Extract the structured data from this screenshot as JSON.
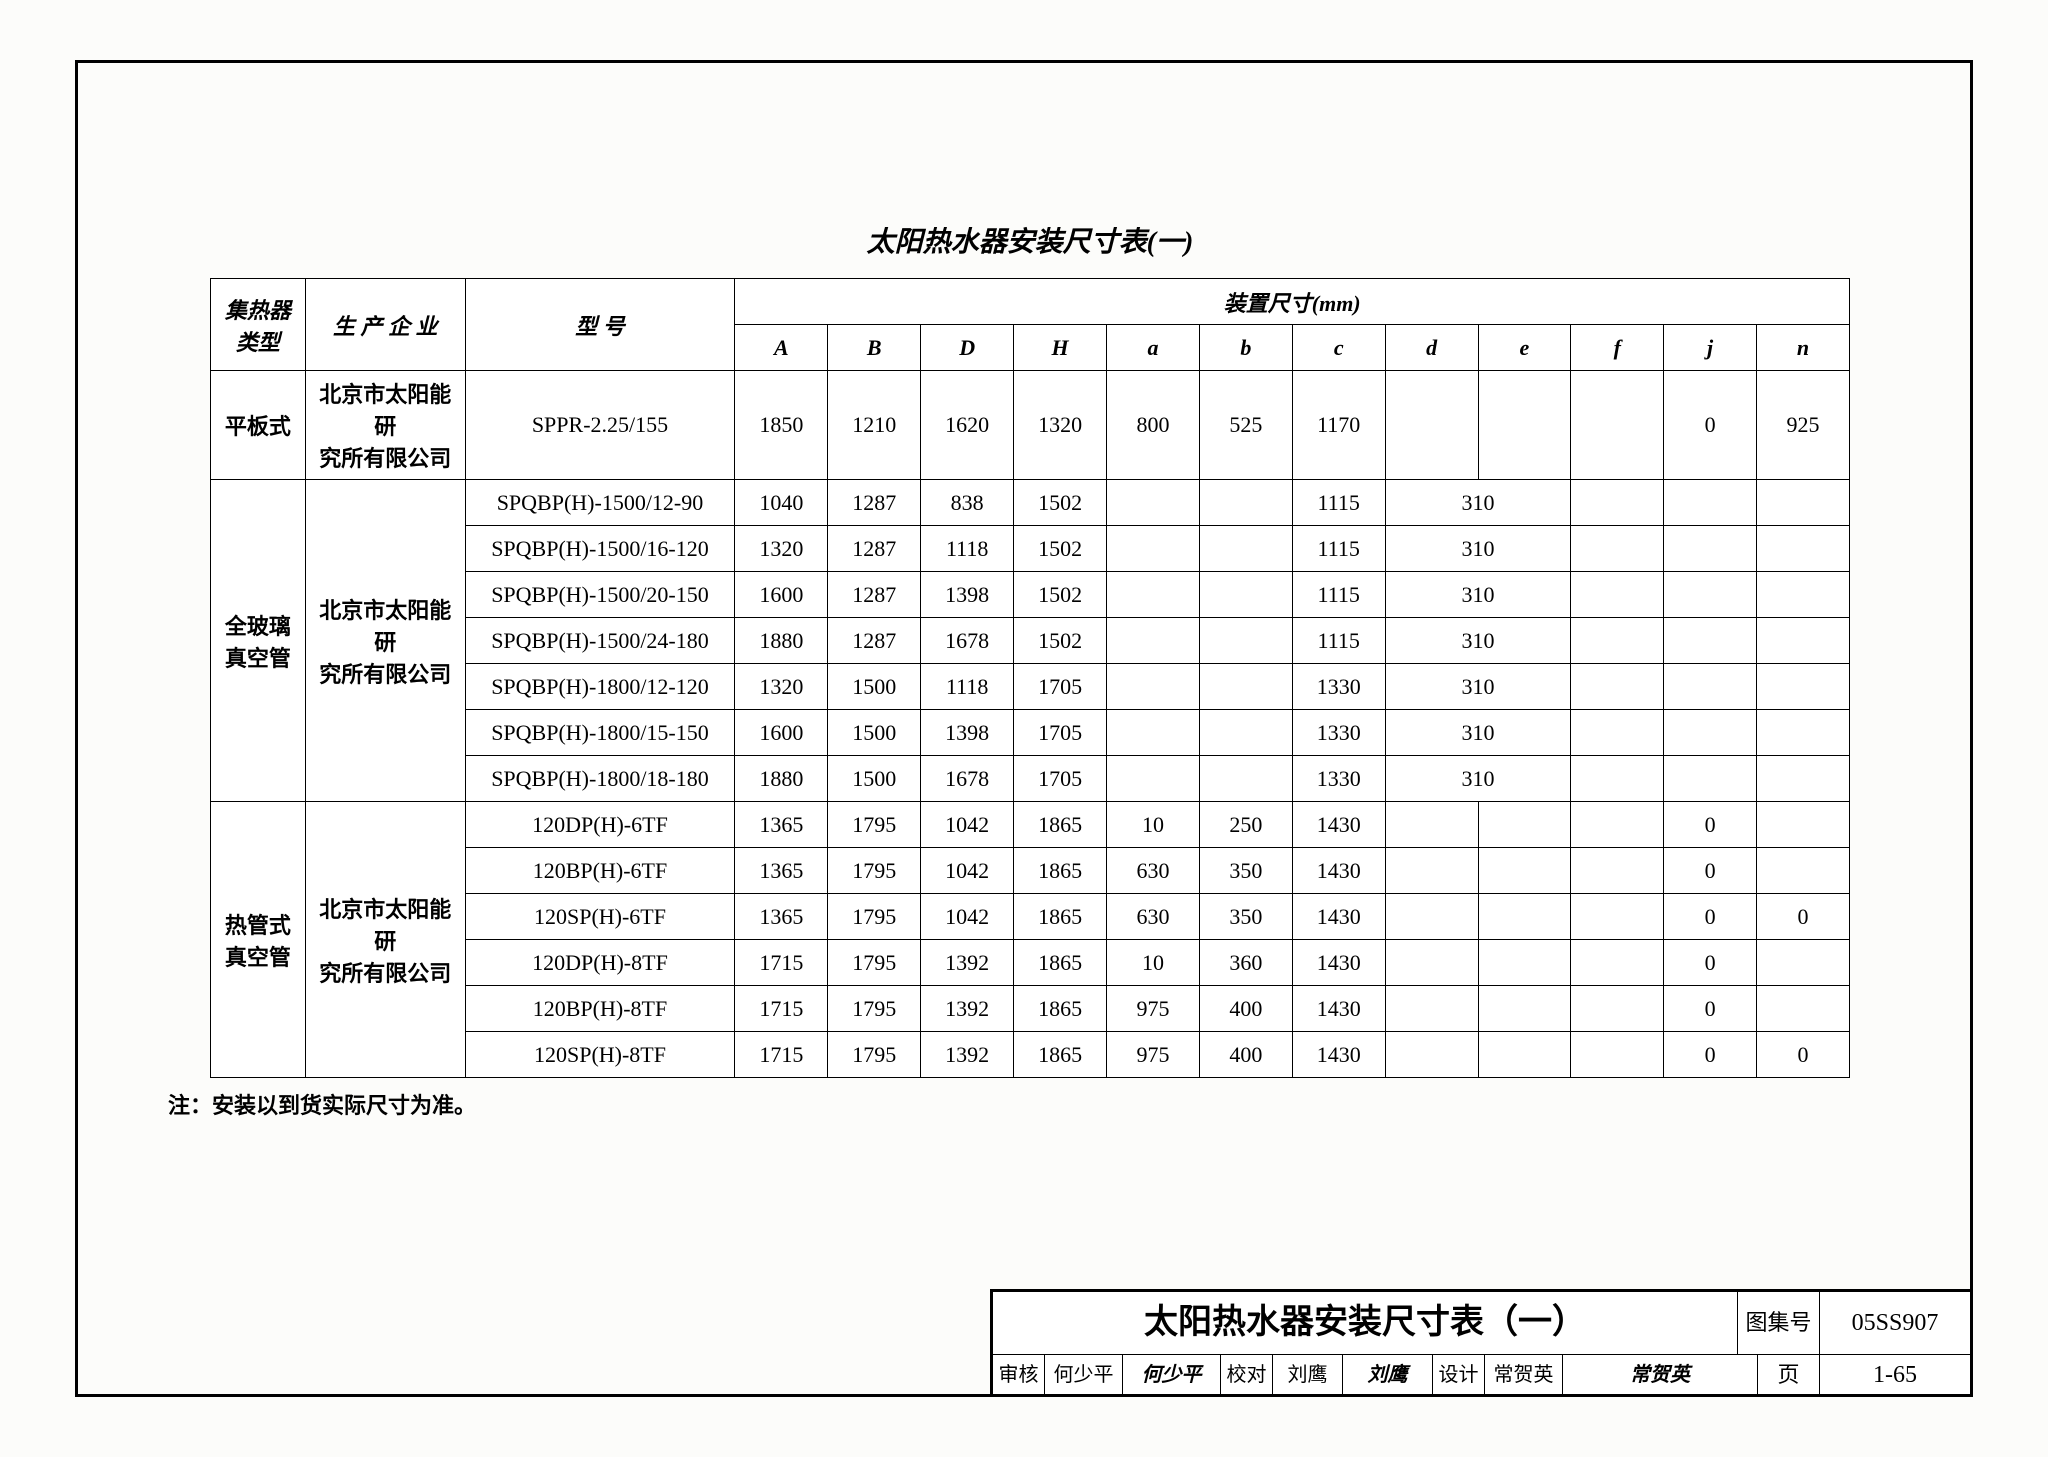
{
  "page_title": "太阳热水器安装尺寸表(一)",
  "columns_group_label": "装置尺寸(mm)",
  "columns": {
    "type": "集热器\n类型",
    "mfg": "生 产 企 业",
    "model": "型    号",
    "dims": [
      "A",
      "B",
      "D",
      "H",
      "a",
      "b",
      "c",
      "d",
      "e",
      "f",
      "j",
      "n"
    ]
  },
  "groups": [
    {
      "type": "平板式",
      "mfg": "北京市太阳能研\n究所有限公司",
      "rows": [
        {
          "model": "SPPR-2.25/155",
          "A": "1850",
          "B": "1210",
          "D": "1620",
          "H": "1320",
          "a": "800",
          "b": "525",
          "c": "1170",
          "d": "",
          "e": "",
          "f": "",
          "j": "0",
          "n": "925"
        }
      ]
    },
    {
      "type": "全玻璃\n真空管",
      "mfg": "北京市太阳能研\n究所有限公司",
      "rows": [
        {
          "model": "SPQBP(H)-1500/12-90",
          "A": "1040",
          "B": "1287",
          "D": "838",
          "H": "1502",
          "a": "",
          "b": "",
          "c": "1115",
          "d": "",
          "de": "310",
          "f": "",
          "j": "",
          "n": ""
        },
        {
          "model": "SPQBP(H)-1500/16-120",
          "A": "1320",
          "B": "1287",
          "D": "1118",
          "H": "1502",
          "a": "",
          "b": "",
          "c": "1115",
          "d": "",
          "de": "310",
          "f": "",
          "j": "",
          "n": ""
        },
        {
          "model": "SPQBP(H)-1500/20-150",
          "A": "1600",
          "B": "1287",
          "D": "1398",
          "H": "1502",
          "a": "",
          "b": "",
          "c": "1115",
          "d": "",
          "de": "310",
          "f": "",
          "j": "",
          "n": ""
        },
        {
          "model": "SPQBP(H)-1500/24-180",
          "A": "1880",
          "B": "1287",
          "D": "1678",
          "H": "1502",
          "a": "",
          "b": "",
          "c": "1115",
          "d": "",
          "de": "310",
          "f": "",
          "j": "",
          "n": ""
        },
        {
          "model": "SPQBP(H)-1800/12-120",
          "A": "1320",
          "B": "1500",
          "D": "1118",
          "H": "1705",
          "a": "",
          "b": "",
          "c": "1330",
          "d": "",
          "de": "310",
          "f": "",
          "j": "",
          "n": ""
        },
        {
          "model": "SPQBP(H)-1800/15-150",
          "A": "1600",
          "B": "1500",
          "D": "1398",
          "H": "1705",
          "a": "",
          "b": "",
          "c": "1330",
          "d": "",
          "de": "310",
          "f": "",
          "j": "",
          "n": ""
        },
        {
          "model": "SPQBP(H)-1800/18-180",
          "A": "1880",
          "B": "1500",
          "D": "1678",
          "H": "1705",
          "a": "",
          "b": "",
          "c": "1330",
          "d": "",
          "de": "310",
          "f": "",
          "j": "",
          "n": ""
        }
      ]
    },
    {
      "type": "热管式\n真空管",
      "mfg": "北京市太阳能研\n究所有限公司",
      "rows": [
        {
          "model": "120DP(H)-6TF",
          "A": "1365",
          "B": "1795",
          "D": "1042",
          "H": "1865",
          "a": "10",
          "b": "250",
          "c": "1430",
          "d": "",
          "e": "",
          "f": "",
          "j": "0",
          "n": ""
        },
        {
          "model": "120BP(H)-6TF",
          "A": "1365",
          "B": "1795",
          "D": "1042",
          "H": "1865",
          "a": "630",
          "b": "350",
          "c": "1430",
          "d": "",
          "e": "",
          "f": "",
          "j": "0",
          "n": ""
        },
        {
          "model": "120SP(H)-6TF",
          "A": "1365",
          "B": "1795",
          "D": "1042",
          "H": "1865",
          "a": "630",
          "b": "350",
          "c": "1430",
          "d": "",
          "e": "",
          "f": "",
          "j": "0",
          "n": "0"
        },
        {
          "model": "120DP(H)-8TF",
          "A": "1715",
          "B": "1795",
          "D": "1392",
          "H": "1865",
          "a": "10",
          "b": "360",
          "c": "1430",
          "d": "",
          "e": "",
          "f": "",
          "j": "0",
          "n": ""
        },
        {
          "model": "120BP(H)-8TF",
          "A": "1715",
          "B": "1795",
          "D": "1392",
          "H": "1865",
          "a": "975",
          "b": "400",
          "c": "1430",
          "d": "",
          "e": "",
          "f": "",
          "j": "0",
          "n": ""
        },
        {
          "model": "120SP(H)-8TF",
          "A": "1715",
          "B": "1795",
          "D": "1392",
          "H": "1865",
          "a": "975",
          "b": "400",
          "c": "1430",
          "d": "",
          "e": "",
          "f": "",
          "j": "0",
          "n": "0"
        }
      ]
    }
  ],
  "footnote": "注：安装以到货实际尺寸为准。",
  "titleblock": {
    "title": "太阳热水器安装尺寸表（一）",
    "atlas_label": "图集号",
    "atlas_no": "05SS907",
    "page_label": "页",
    "page_no": "1-65",
    "review_label": "审核",
    "review_name": "何少平",
    "review_sig": "何少平",
    "verify_label": "校对",
    "verify_name": "刘鹰",
    "verify_sig": "刘鹰",
    "design_label": "设计",
    "design_name": "常贺英",
    "design_sig": "常贺英"
  },
  "styling": {
    "page_bg": "#fcfcfa",
    "border_color": "#000000",
    "font_family": "SimSun",
    "title_fontsize_pt": 21,
    "table_fontsize_pt": 16,
    "titleblock_title_fontsize_pt": 25
  }
}
